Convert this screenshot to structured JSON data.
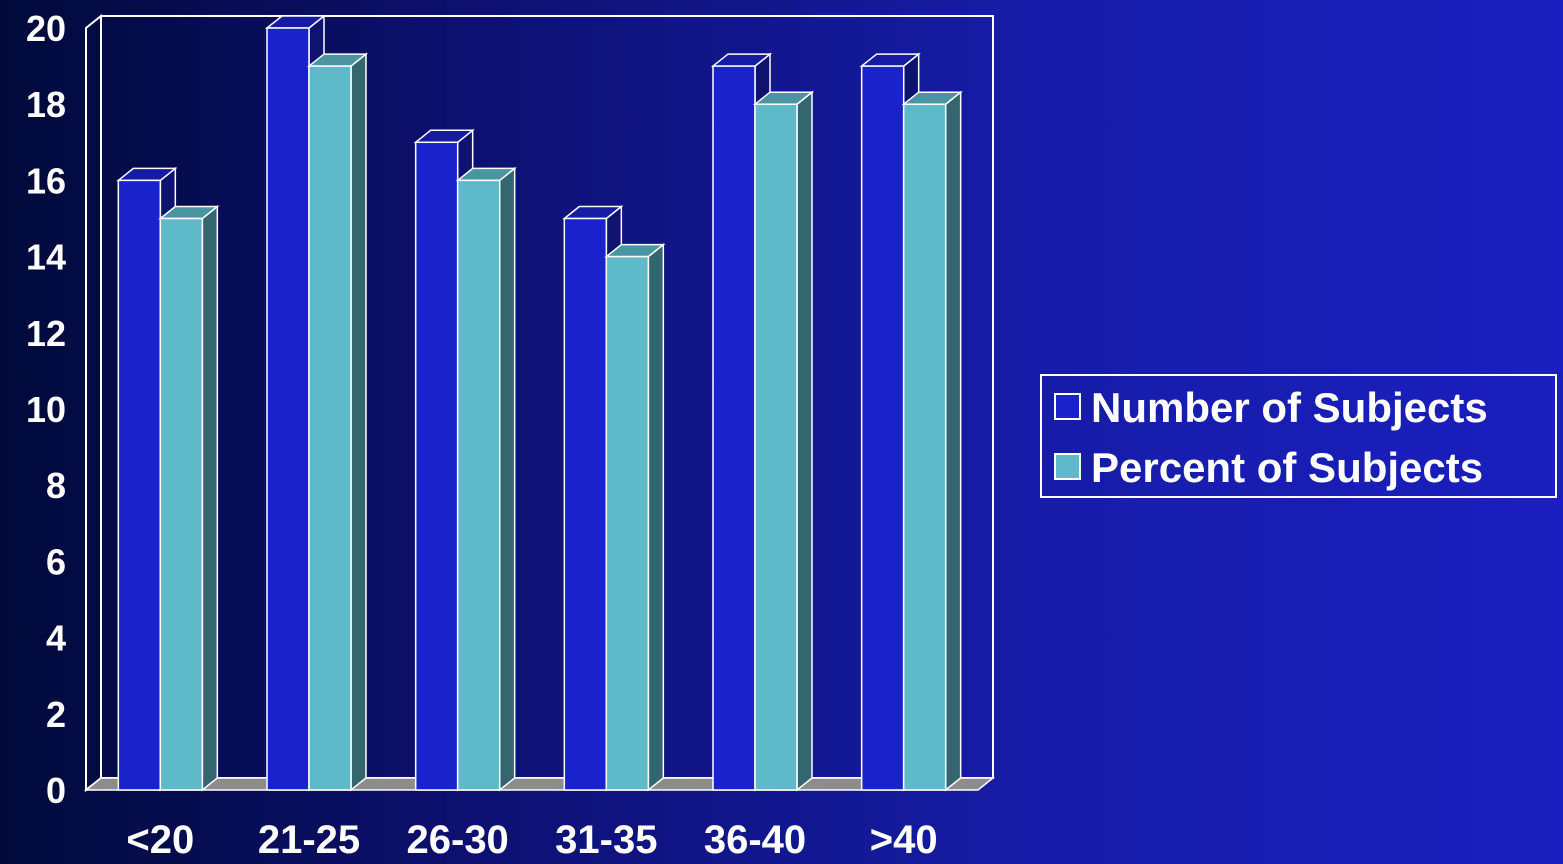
{
  "chart_data": {
    "type": "bar",
    "title": "",
    "xlabel": "",
    "ylabel": "",
    "categories": [
      "<20",
      "21-25",
      "26-30",
      "31-35",
      "36-40",
      ">40"
    ],
    "series": [
      {
        "name": "Number of Subjects",
        "values": [
          16,
          20,
          17,
          15,
          19,
          19
        ],
        "color": "#1a22cc"
      },
      {
        "name": "Percent of Subjects",
        "values": [
          15,
          19,
          16,
          14,
          18,
          18
        ],
        "color": "#5eb9c9"
      }
    ],
    "ylim": [
      0,
      20
    ],
    "yticks": [
      "0",
      "2",
      "4",
      "6",
      "8",
      "10",
      "12",
      "14",
      "16",
      "18",
      "20"
    ],
    "grid": false,
    "legend_position": "right",
    "style": "3d"
  }
}
